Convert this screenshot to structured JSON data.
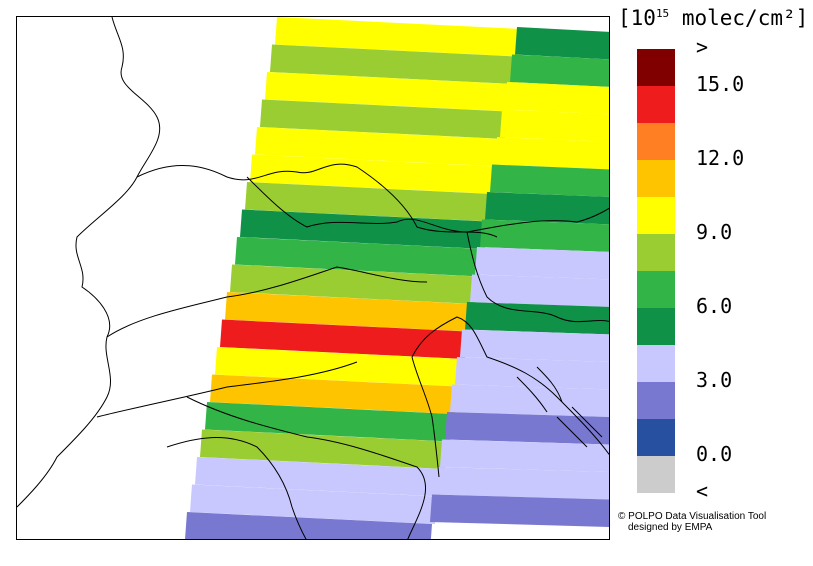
{
  "legend": {
    "unit_title_pre": "[10",
    "unit_title_exp": "15",
    "unit_title_post": " molec/cm²]",
    "colors": [
      "#800000",
      "#ee1c1c",
      "#ff7f22",
      "#ffc400",
      "#ffff00",
      "#9acd32",
      "#32b446",
      "#109148",
      "#c8c8ff",
      "#7878d0",
      "#2850a0",
      "#cccccc"
    ],
    "tick_labels": [
      {
        "text": ">",
        "level": 12
      },
      {
        "text": "15.0",
        "level": 11
      },
      {
        "text": "12.0",
        "level": 9
      },
      {
        "text": "9.0",
        "level": 7
      },
      {
        "text": "6.0",
        "level": 5
      },
      {
        "text": "3.0",
        "level": 3
      },
      {
        "text": "0.0",
        "level": 1
      },
      {
        "text": "<",
        "level": 0
      }
    ]
  },
  "credit": {
    "line1": "© POLPO Data Visualisation Tool",
    "line2": "designed by EMPA"
  },
  "map": {
    "feature_layer": "national and regional borders, coastline",
    "swath_colors_by_row": [
      "#ffff00",
      "#9acd32",
      "#ffff00",
      "#9acd32",
      "#ffff00",
      "#ffff00",
      "#9acd32",
      "#109148",
      "#32b446",
      "#9acd32",
      "#ffc400",
      "#ee1c1c",
      "#ffff00",
      "#ffc400",
      "#32b446",
      "#9acd32",
      "#c8c8ff",
      "#c8c8ff",
      "#7878d0"
    ],
    "east_swath_colors_by_row": [
      "#109148",
      "#32b446",
      "#ffff00",
      "#ffff00",
      "#ffff00",
      "#32b446",
      "#109148",
      "#32b446",
      "#c8c8ff",
      "#c8c8ff",
      "#109148",
      "#c8c8ff",
      "#c8c8ff",
      "#c8c8ff",
      "#7878d0",
      "#c8c8ff",
      "#c8c8ff",
      "#7878d0"
    ]
  }
}
